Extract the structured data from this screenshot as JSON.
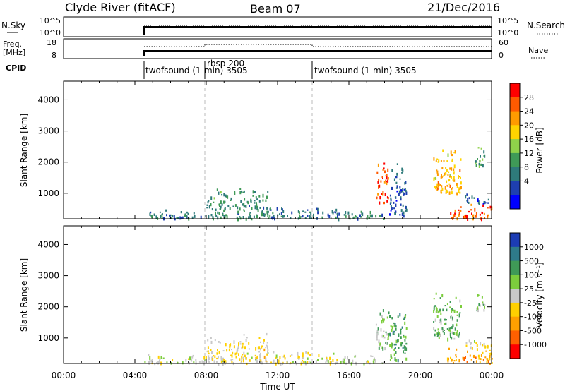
{
  "header": {
    "station": "Clyde River (fitACF)",
    "beam": "Beam 07",
    "date": "21/Dec/2016"
  },
  "noise_panel": {
    "left_label": "N.Sky",
    "right_label": "N.Search",
    "ticks_left": [
      "10^5",
      "10^0"
    ],
    "ticks_right": [
      "10^5",
      "10^0"
    ]
  },
  "freq_panel": {
    "left_label_line1": "Freq.",
    "left_label_line2": "[MHz]",
    "right_label": "Nave",
    "ticks_left": [
      "18",
      "8"
    ],
    "ticks_right": [
      "60",
      "0"
    ]
  },
  "cpid": {
    "label": "CPID",
    "programs": [
      {
        "name": "twofsound (1-min) 3505",
        "start_hour": 4.5
      },
      {
        "name": "rbsp 200",
        "start_hour": 8.0
      },
      {
        "name": "twofsound (1-min) 3505",
        "start_hour": 14.0
      }
    ]
  },
  "power_colorbar": {
    "label": "Power [dB]",
    "ticks": [
      "28",
      "24",
      "20",
      "16",
      "12",
      "8",
      "4"
    ],
    "colors": [
      "#ff0000",
      "#ff5a00",
      "#ff9b00",
      "#ffd400",
      "#8fd24a",
      "#3f9a57",
      "#2e7a7a",
      "#1e3fb0",
      "#0000ff"
    ]
  },
  "velocity_colorbar": {
    "label": "Velocity [m s⁻¹]",
    "ticks": [
      "1000",
      "500",
      "100",
      "25",
      "-25",
      "-100",
      "-500",
      "-1000"
    ],
    "colors": [
      "#1c3cb4",
      "#2e7a8a",
      "#3f9a57",
      "#7ccd3c",
      "#c8c8c8",
      "#ffd000",
      "#ffa000",
      "#ff6000",
      "#ff0000"
    ]
  },
  "x_axis": {
    "label": "Time UT",
    "ticks": [
      "00:00",
      "04:00",
      "08:00",
      "12:00",
      "16:00",
      "20:00",
      "00:00"
    ]
  },
  "chart_data": [
    {
      "type": "heatmap",
      "name": "power",
      "ylabel": "Slant Range [km]",
      "xlabel": "Time UT",
      "xlim": [
        0,
        24
      ],
      "ylim": [
        180,
        4600
      ],
      "yticks": [
        1000,
        2000,
        3000,
        4000
      ],
      "colorbar_label": "Power [dB]",
      "value_range": [
        0,
        30
      ],
      "regions": [
        {
          "t0": 4.5,
          "t1": 8.0,
          "r0": 200,
          "r1": 500,
          "value": 8
        },
        {
          "t0": 8.0,
          "t1": 11.5,
          "r0": 200,
          "r1": 1200,
          "value": 10
        },
        {
          "t0": 11.5,
          "t1": 15.5,
          "r0": 200,
          "r1": 600,
          "value": 8
        },
        {
          "t0": 15.5,
          "t1": 18.0,
          "r0": 200,
          "r1": 500,
          "value": 10
        },
        {
          "t0": 17.5,
          "t1": 18.2,
          "r0": 700,
          "r1": 2100,
          "value": 26
        },
        {
          "t0": 18.2,
          "t1": 19.2,
          "r0": 300,
          "r1": 2000,
          "value": 6
        },
        {
          "t0": 20.7,
          "t1": 22.3,
          "r0": 1000,
          "r1": 2500,
          "value": 20
        },
        {
          "t0": 21.5,
          "t1": 24.0,
          "r0": 200,
          "r1": 700,
          "value": 26
        },
        {
          "t0": 22.5,
          "t1": 24.0,
          "r0": 700,
          "r1": 1000,
          "value": 6
        },
        {
          "t0": 23.0,
          "t1": 23.6,
          "r0": 1900,
          "r1": 2600,
          "value": 12
        }
      ]
    },
    {
      "type": "heatmap",
      "name": "velocity",
      "ylabel": "Slant Range [km]",
      "xlabel": "Time UT",
      "xlim": [
        0,
        24
      ],
      "ylim": [
        180,
        4600
      ],
      "yticks": [
        1000,
        2000,
        3000,
        4000
      ],
      "colorbar_label": "Velocity [m s⁻¹]",
      "value_range": [
        -1000,
        1000
      ],
      "regions": [
        {
          "t0": 4.5,
          "t1": 8.0,
          "r0": 200,
          "r1": 500,
          "value": -30
        },
        {
          "t0": 8.0,
          "t1": 11.5,
          "r0": 200,
          "r1": 1200,
          "value": -120
        },
        {
          "t0": 11.5,
          "t1": 15.5,
          "r0": 200,
          "r1": 600,
          "value": -40
        },
        {
          "t0": 15.5,
          "t1": 18.0,
          "r0": 200,
          "r1": 500,
          "value": 60
        },
        {
          "t0": 17.5,
          "t1": 18.2,
          "r0": 700,
          "r1": 2100,
          "value": 200
        },
        {
          "t0": 18.2,
          "t1": 19.2,
          "r0": 300,
          "r1": 2000,
          "value": 400
        },
        {
          "t0": 20.7,
          "t1": 22.3,
          "r0": 1000,
          "r1": 2500,
          "value": 300
        },
        {
          "t0": 21.5,
          "t1": 24.0,
          "r0": 200,
          "r1": 700,
          "value": -400
        },
        {
          "t0": 22.5,
          "t1": 24.0,
          "r0": 700,
          "r1": 1000,
          "value": 10
        },
        {
          "t0": 23.0,
          "t1": 23.6,
          "r0": 1900,
          "r1": 2600,
          "value": 200
        }
      ]
    }
  ]
}
